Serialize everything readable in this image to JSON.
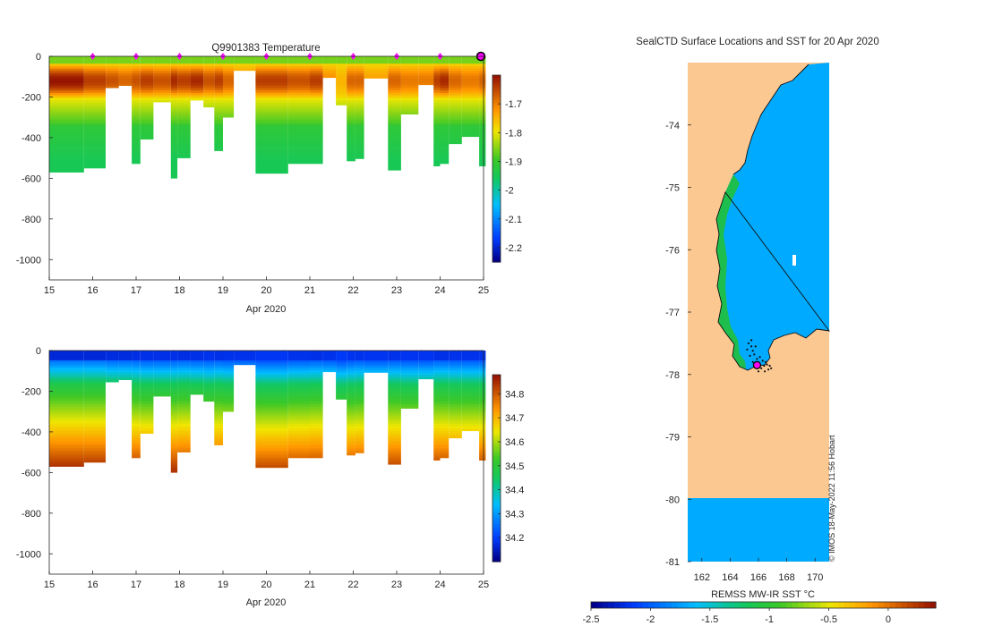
{
  "colors": {
    "land": "#fcc891",
    "sea": "#00aaff",
    "coast_green": "#22c22e",
    "marker_magenta": "#ff00ff",
    "frame": "#262626"
  },
  "chart_data": [
    {
      "type": "heatmap",
      "id": "temperature",
      "title": "Q9901383  Temperature",
      "xlabel": "Apr 2020",
      "ylabel": "",
      "xlim": [
        15,
        25
      ],
      "ylim": [
        -1100,
        0
      ],
      "x_ticks": [
        "15",
        "16",
        "17",
        "18",
        "19",
        "20",
        "21",
        "22",
        "23",
        "24",
        "25"
      ],
      "y_ticks": [
        {
          "value": 0,
          "label": "0"
        },
        {
          "value": -200,
          "label": "-200"
        },
        {
          "value": -400,
          "label": "-400"
        },
        {
          "value": -600,
          "label": "-600"
        },
        {
          "value": -800,
          "label": "-800"
        },
        {
          "value": -1000,
          "label": "-1000"
        }
      ],
      "colorbar": {
        "min": -2.25,
        "max": -1.6,
        "ticks": [
          {
            "value": -1.7,
            "label": "-1.7"
          },
          {
            "value": -1.8,
            "label": "-1.8"
          },
          {
            "value": -1.9,
            "label": "-1.9"
          },
          {
            "value": -2,
            "label": "-2"
          },
          {
            "value": -2.1,
            "label": "-2.1"
          },
          {
            "value": -2.2,
            "label": "-2.2"
          }
        ]
      },
      "markers_x": [
        16,
        17,
        18,
        19,
        20,
        21,
        22,
        23,
        24,
        25
      ],
      "profiles": [
        {
          "x0": 15.0,
          "x1": 15.8,
          "depth": 570,
          "type": "t",
          "core": 1.0
        },
        {
          "x0": 15.8,
          "x1": 16.3,
          "depth": 550,
          "type": "t",
          "core": 0.8
        },
        {
          "x0": 16.3,
          "x1": 16.6,
          "depth": 155,
          "type": "t",
          "core": 0.7
        },
        {
          "x0": 16.6,
          "x1": 16.9,
          "depth": 145,
          "type": "t",
          "core": 0.6
        },
        {
          "x0": 16.9,
          "x1": 17.1,
          "depth": 530,
          "type": "t",
          "core": 0.7
        },
        {
          "x0": 17.1,
          "x1": 17.4,
          "depth": 410,
          "type": "t",
          "core": 0.8
        },
        {
          "x0": 17.4,
          "x1": 17.8,
          "depth": 225,
          "type": "t",
          "core": 0.7
        },
        {
          "x0": 17.8,
          "x1": 17.95,
          "depth": 600,
          "type": "t",
          "core": 0.9
        },
        {
          "x0": 17.95,
          "x1": 18.25,
          "depth": 500,
          "type": "t",
          "core": 0.8
        },
        {
          "x0": 18.25,
          "x1": 18.55,
          "depth": 220,
          "type": "t",
          "core": 0.9
        },
        {
          "x0": 18.55,
          "x1": 18.8,
          "depth": 250,
          "type": "t",
          "core": 0.7
        },
        {
          "x0": 18.8,
          "x1": 19.0,
          "depth": 465,
          "type": "t",
          "core": 0.8
        },
        {
          "x0": 19.0,
          "x1": 19.25,
          "depth": 300,
          "type": "t",
          "core": 0.6
        },
        {
          "x0": 19.25,
          "x1": 19.75,
          "depth": 70,
          "type": "t",
          "core": 0.4
        },
        {
          "x0": 19.75,
          "x1": 20.5,
          "depth": 580,
          "type": "t",
          "core": 0.8
        },
        {
          "x0": 20.5,
          "x1": 21.0,
          "depth": 530,
          "type": "t",
          "core": 0.7
        },
        {
          "x0": 21.0,
          "x1": 21.3,
          "depth": 530,
          "type": "t",
          "core": 0.8
        },
        {
          "x0": 21.3,
          "x1": 21.6,
          "depth": 105,
          "type": "t",
          "core": 0.4
        },
        {
          "x0": 21.6,
          "x1": 21.85,
          "depth": 240,
          "type": "t",
          "core": 0.2
        },
        {
          "x0": 21.85,
          "x1": 22.05,
          "depth": 515,
          "type": "t",
          "core": 0.6
        },
        {
          "x0": 22.05,
          "x1": 22.25,
          "depth": 505,
          "type": "t",
          "core": 0.6
        },
        {
          "x0": 22.25,
          "x1": 22.8,
          "depth": 110,
          "type": "t",
          "core": 0.3
        },
        {
          "x0": 22.8,
          "x1": 23.1,
          "depth": 560,
          "type": "t",
          "core": 0.6
        },
        {
          "x0": 23.1,
          "x1": 23.5,
          "depth": 285,
          "type": "t",
          "core": 0.5
        },
        {
          "x0": 23.5,
          "x1": 23.85,
          "depth": 140,
          "type": "t",
          "core": 0.5
        },
        {
          "x0": 23.85,
          "x1": 24.0,
          "depth": 545,
          "type": "t",
          "core": 0.8
        },
        {
          "x0": 24.0,
          "x1": 24.2,
          "depth": 530,
          "type": "t",
          "core": 0.9
        },
        {
          "x0": 24.2,
          "x1": 24.5,
          "depth": 430,
          "type": "t",
          "core": 0.6
        },
        {
          "x0": 24.5,
          "x1": 24.9,
          "depth": 395,
          "type": "t",
          "core": 0.5
        },
        {
          "x0": 24.9,
          "x1": 25.05,
          "depth": 540,
          "type": "t",
          "core": 0.6
        }
      ]
    },
    {
      "type": "heatmap",
      "id": "salinity",
      "title": "",
      "xlabel": "Apr 2020",
      "ylabel": "",
      "xlim": [
        15,
        25
      ],
      "ylim": [
        -1100,
        0
      ],
      "x_ticks": [
        "15",
        "16",
        "17",
        "18",
        "19",
        "20",
        "21",
        "22",
        "23",
        "24",
        "25"
      ],
      "y_ticks": [
        {
          "value": 0,
          "label": "0"
        },
        {
          "value": -200,
          "label": "-200"
        },
        {
          "value": -400,
          "label": "-400"
        },
        {
          "value": -600,
          "label": "-600"
        },
        {
          "value": -800,
          "label": "-800"
        },
        {
          "value": -1000,
          "label": "-1000"
        }
      ],
      "colorbar": {
        "min": 34.1,
        "max": 34.88,
        "ticks": [
          {
            "value": 34.8,
            "label": "34.8"
          },
          {
            "value": 34.7,
            "label": "34.7"
          },
          {
            "value": 34.6,
            "label": "34.6"
          },
          {
            "value": 34.5,
            "label": "34.5"
          },
          {
            "value": 34.4,
            "label": "34.4"
          },
          {
            "value": 34.3,
            "label": "34.3"
          },
          {
            "value": 34.2,
            "label": "34.2"
          }
        ]
      },
      "profiles": [
        {
          "x0": 15.0,
          "x1": 15.8,
          "depth": 570,
          "type": "s",
          "core": 1.0
        },
        {
          "x0": 15.8,
          "x1": 16.3,
          "depth": 550,
          "type": "s",
          "core": 1.0
        },
        {
          "x0": 16.3,
          "x1": 16.6,
          "depth": 155,
          "type": "s",
          "core": 0.8
        },
        {
          "x0": 16.6,
          "x1": 16.9,
          "depth": 145,
          "type": "s",
          "core": 0.8
        },
        {
          "x0": 16.9,
          "x1": 17.1,
          "depth": 530,
          "type": "s",
          "core": 0.7
        },
        {
          "x0": 17.1,
          "x1": 17.4,
          "depth": 410,
          "type": "s",
          "core": 0.6
        },
        {
          "x0": 17.4,
          "x1": 17.8,
          "depth": 225,
          "type": "s",
          "core": 0.6
        },
        {
          "x0": 17.8,
          "x1": 17.95,
          "depth": 600,
          "type": "s",
          "core": 0.6
        },
        {
          "x0": 17.95,
          "x1": 18.25,
          "depth": 500,
          "type": "s",
          "core": 0.7
        },
        {
          "x0": 18.25,
          "x1": 18.55,
          "depth": 220,
          "type": "s",
          "core": 0.6
        },
        {
          "x0": 18.55,
          "x1": 18.8,
          "depth": 250,
          "type": "s",
          "core": 0.5
        },
        {
          "x0": 18.8,
          "x1": 19.0,
          "depth": 465,
          "type": "s",
          "core": 0.6
        },
        {
          "x0": 19.0,
          "x1": 19.25,
          "depth": 300,
          "type": "s",
          "core": 0.5
        },
        {
          "x0": 19.25,
          "x1": 19.75,
          "depth": 70,
          "type": "s",
          "core": 0.5
        },
        {
          "x0": 19.75,
          "x1": 20.5,
          "depth": 580,
          "type": "s",
          "core": 0.3
        },
        {
          "x0": 20.5,
          "x1": 21.0,
          "depth": 530,
          "type": "s",
          "core": 0.5
        },
        {
          "x0": 21.0,
          "x1": 21.3,
          "depth": 530,
          "type": "s",
          "core": 0.6
        },
        {
          "x0": 21.3,
          "x1": 21.6,
          "depth": 105,
          "type": "s",
          "core": 0.5
        },
        {
          "x0": 21.6,
          "x1": 21.85,
          "depth": 240,
          "type": "s",
          "core": 0.2
        },
        {
          "x0": 21.85,
          "x1": 22.05,
          "depth": 515,
          "type": "s",
          "core": 0.4
        },
        {
          "x0": 22.05,
          "x1": 22.25,
          "depth": 505,
          "type": "s",
          "core": 0.5
        },
        {
          "x0": 22.25,
          "x1": 22.8,
          "depth": 110,
          "type": "s",
          "core": 0.4
        },
        {
          "x0": 22.8,
          "x1": 23.1,
          "depth": 560,
          "type": "s",
          "core": 0.5
        },
        {
          "x0": 23.1,
          "x1": 23.5,
          "depth": 285,
          "type": "s",
          "core": 0.4
        },
        {
          "x0": 23.5,
          "x1": 23.85,
          "depth": 140,
          "type": "s",
          "core": 0.4
        },
        {
          "x0": 23.85,
          "x1": 24.0,
          "depth": 545,
          "type": "s",
          "core": 0.6
        },
        {
          "x0": 24.0,
          "x1": 24.2,
          "depth": 530,
          "type": "s",
          "core": 0.6
        },
        {
          "x0": 24.2,
          "x1": 24.5,
          "depth": 430,
          "type": "s",
          "core": 0.5
        },
        {
          "x0": 24.5,
          "x1": 24.9,
          "depth": 395,
          "type": "s",
          "core": 0.5
        },
        {
          "x0": 24.9,
          "x1": 25.05,
          "depth": 540,
          "type": "s",
          "core": 0.5
        }
      ]
    },
    {
      "type": "map",
      "id": "sst_map",
      "title": "SealCTD Surface Locations and SST for 20 Apr 2020",
      "xlim": [
        161,
        171
      ],
      "ylim": [
        -81,
        -73
      ],
      "x_ticks": [
        "162",
        "164",
        "166",
        "168",
        "170"
      ],
      "y_ticks": [
        "-74",
        "-75",
        "-76",
        "-77",
        "-78",
        "-79",
        "-80",
        "-81"
      ],
      "colorbar": {
        "label": "REMSS MW-IR SST °C",
        "min": -2.5,
        "max": 0.4,
        "ticks": [
          {
            "value": -2.5,
            "label": "-2.5"
          },
          {
            "value": -2,
            "label": "-2"
          },
          {
            "value": -1.5,
            "label": "-1.5"
          },
          {
            "value": -1,
            "label": "-1"
          },
          {
            "value": -0.5,
            "label": "-0.5"
          },
          {
            "value": 0,
            "label": "0"
          }
        ]
      },
      "credit": "© IMOS 18-May-2022 11:56 Hobart",
      "track_points": [
        [
          165.3,
          -77.5
        ],
        [
          165.5,
          -77.55
        ],
        [
          165.6,
          -77.62
        ],
        [
          165.2,
          -77.6
        ],
        [
          165.4,
          -77.7
        ],
        [
          165.7,
          -77.68
        ],
        [
          165.9,
          -77.75
        ],
        [
          166.1,
          -77.72
        ],
        [
          166.3,
          -77.78
        ],
        [
          166.5,
          -77.8
        ],
        [
          166.6,
          -77.84
        ],
        [
          166.8,
          -77.86
        ],
        [
          166.4,
          -77.86
        ],
        [
          166.2,
          -77.9
        ],
        [
          165.9,
          -77.86
        ],
        [
          165.6,
          -77.8
        ],
        [
          166.7,
          -77.92
        ],
        [
          166.9,
          -77.9
        ],
        [
          165.8,
          -77.55
        ],
        [
          165.5,
          -77.45
        ],
        [
          166.0,
          -77.95
        ],
        [
          166.45,
          -77.95
        ]
      ],
      "current_position": [
        165.9,
        -77.85
      ]
    }
  ]
}
